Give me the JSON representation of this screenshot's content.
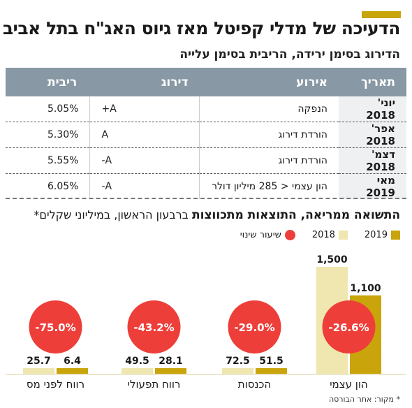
{
  "header": {
    "title": "הדעיכה של מדלי קפיטל מאז גיוס האג\"ח בתל אביב",
    "subtitle": "הדירוג בסימן ירידה, הריבית בסימן עלייה"
  },
  "table": {
    "headers": [
      "תאריך",
      "אירוע",
      "דירוג",
      "ריבית"
    ],
    "rows": [
      {
        "date": "יוני' 2018",
        "event": "הנפקה",
        "rating": "A+",
        "yield": "5.05%"
      },
      {
        "date": "אפר' 2018",
        "event": "הורדת דירוג",
        "rating": "A",
        "yield": "5.30%"
      },
      {
        "date": "דצמ' 2018",
        "event": "הורדת דירוג",
        "rating": "A-",
        "yield": "5.55%"
      },
      {
        "date": "מאי 2019",
        "event": "הון עצמי < 285 מיליון דולר",
        "rating": "A-",
        "yield": "6.05%"
      }
    ]
  },
  "section": {
    "title_bold": "התשואה ממריאה, התוצאות מתכווצות",
    "title_rest": " ברבעון הראשון, במיליוני שקלים*"
  },
  "legend": {
    "series_2019": "2019",
    "series_2018": "2018",
    "change": "שיעור שינוי"
  },
  "colors": {
    "accent": "#c9a40a",
    "bar_2019": "#c9a40a",
    "bar_2018": "#efe6b0",
    "change_circle": "#ee3e3a",
    "table_header": "#8898a4"
  },
  "chart_data": {
    "type": "bar",
    "categories": [
      "הון עצמי",
      "הכנסות",
      "רווח תפעולי",
      "רווח לפני מס"
    ],
    "series": [
      {
        "name": "2019",
        "values": [
          1100,
          51.5,
          28.1,
          6.4
        ],
        "labels": [
          "1,100",
          "51.5",
          "28.1",
          "6.4"
        ]
      },
      {
        "name": "2018",
        "values": [
          1500,
          72.5,
          49.5,
          25.7
        ],
        "labels": [
          "1,500",
          "72.5",
          "49.5",
          "25.7"
        ]
      }
    ],
    "change_pct": [
      -26.6,
      -29.0,
      -43.2,
      -75.0
    ],
    "change_labels": [
      "-26.6%",
      "-29.0%",
      "-43.2%",
      "-75.0%"
    ],
    "ylim": [
      0,
      1500
    ]
  },
  "footer": {
    "source": "* מקור: אתר הבורסה"
  }
}
